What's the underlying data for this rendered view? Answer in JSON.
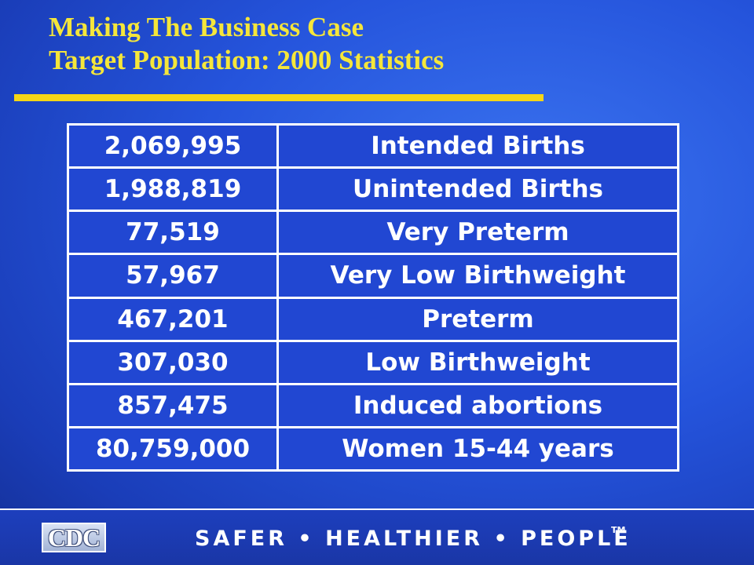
{
  "slide": {
    "title_line1": "Making The Business Case",
    "title_line2": "Target Population: 2000 Statistics"
  },
  "table": {
    "rows": [
      {
        "value": "2,069,995",
        "label": "Intended Births"
      },
      {
        "value": "1,988,819",
        "label": "Unintended Births"
      },
      {
        "value": "77,519",
        "label": "Very Preterm"
      },
      {
        "value": "57,967",
        "label": "Very Low Birthweight"
      },
      {
        "value": "467,201",
        "label": "Preterm"
      },
      {
        "value": "307,030",
        "label": "Low Birthweight"
      },
      {
        "value": "857,475",
        "label": "Induced abortions"
      },
      {
        "value": "80,759,000",
        "label": "Women 15-44 years"
      }
    ]
  },
  "footer": {
    "logo_text": "CDC",
    "tagline": "SAFER • HEALTHIER • PEOPLE",
    "trademark": "TM"
  },
  "colors": {
    "title": "#f5e63a",
    "rule": "#f5d617",
    "background": "#2554dc",
    "text": "#ffffff"
  }
}
